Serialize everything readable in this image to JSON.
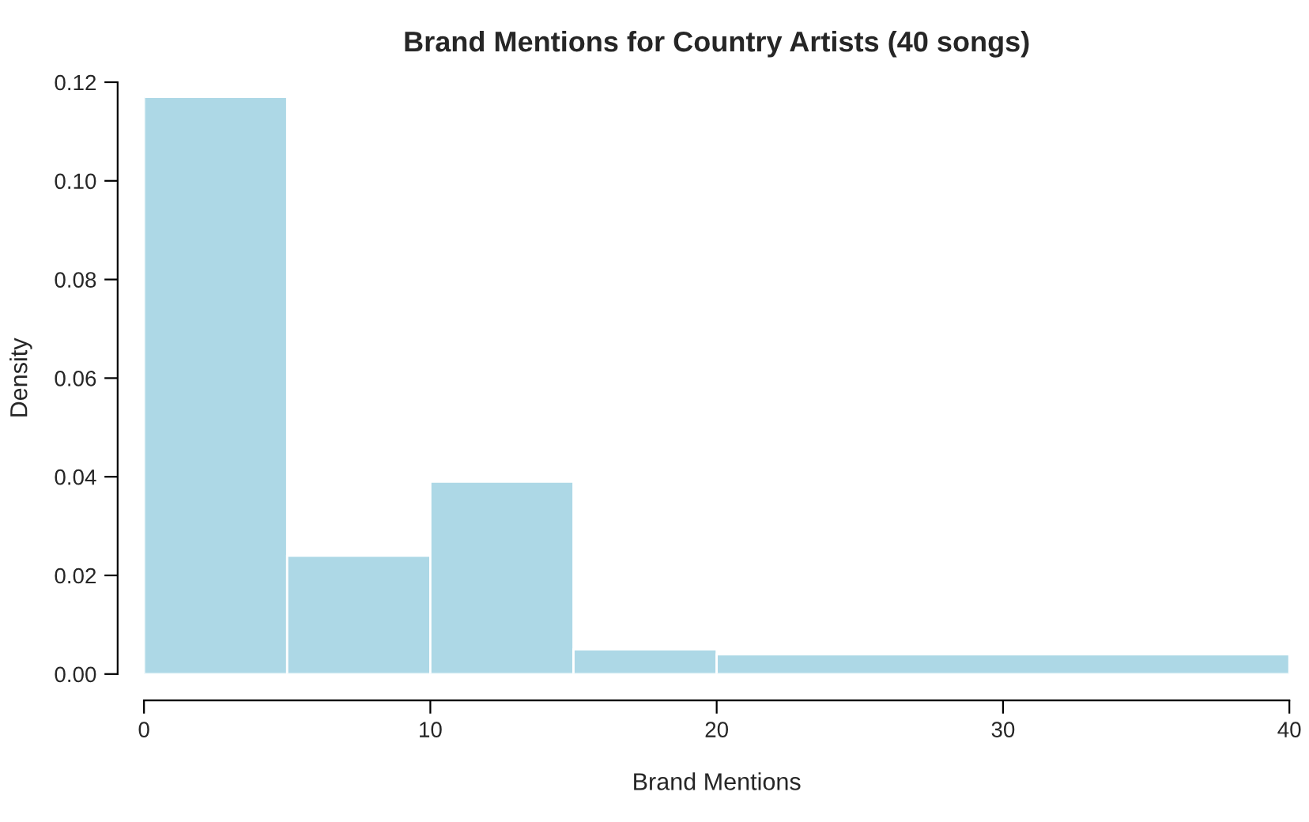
{
  "chart_data": {
    "type": "histogram",
    "title": "Brand Mentions for Country Artists (40 songs)",
    "xlabel": "Brand Mentions",
    "ylabel": "Density",
    "bins": [
      0,
      5,
      10,
      15,
      20,
      40
    ],
    "values": [
      0.117,
      0.024,
      0.039,
      0.005,
      0.004
    ],
    "color": "#add8e6",
    "xlim": [
      0,
      40
    ],
    "xticks": [
      0,
      10,
      20,
      30,
      40
    ],
    "ylim": [
      0,
      0.12
    ],
    "yticks": [
      {
        "value": 0,
        "label": "0.00"
      },
      {
        "value": 0.02,
        "label": "0.02"
      },
      {
        "value": 0.04,
        "label": "0.04"
      },
      {
        "value": 0.06,
        "label": "0.06"
      },
      {
        "value": 0.08,
        "label": "0.08"
      },
      {
        "value": 0.1,
        "label": "0.10"
      },
      {
        "value": 0.12,
        "label": "0.12"
      }
    ],
    "grid": false
  }
}
